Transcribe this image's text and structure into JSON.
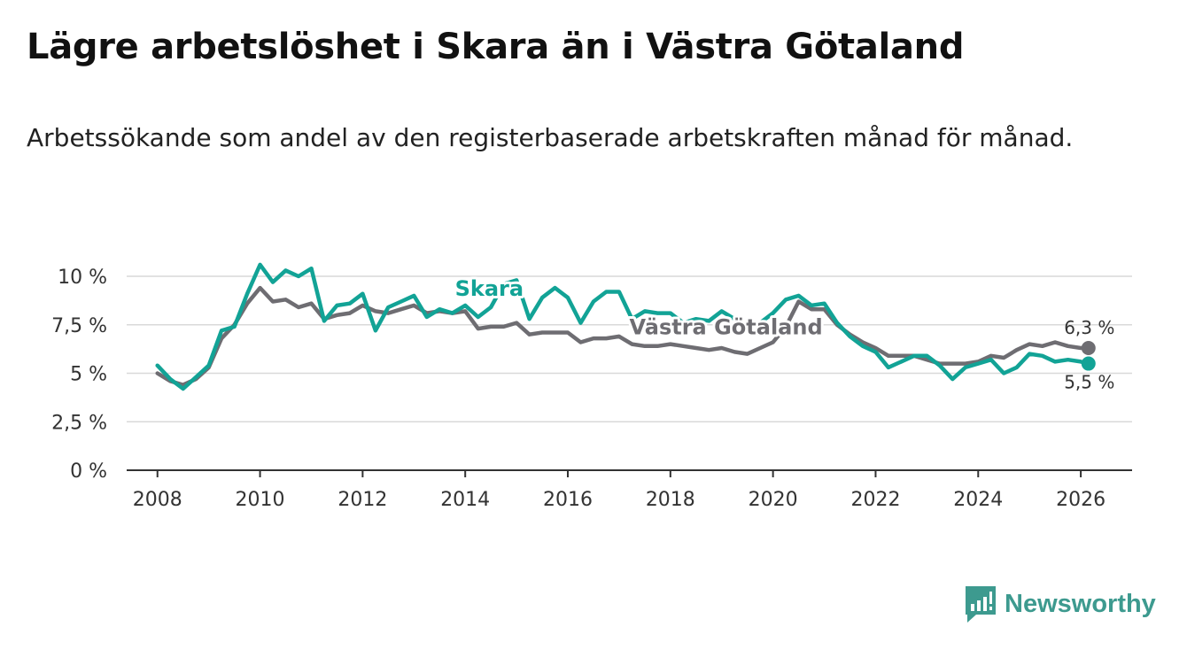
{
  "title": "Lägre arbetslöshet i Skara än i Västra Götaland",
  "subtitle": "Arbetssökande som andel av den registerbaserade arbetskraften månad för månad.",
  "brand": {
    "name": "Newsworthy",
    "color": "#3d9a8f",
    "icon": "newsworthy-logo-icon"
  },
  "chart_data": {
    "type": "line",
    "title": "Lägre arbetslöshet i Skara än i Västra Götaland",
    "xlabel": "",
    "ylabel": "",
    "xlim": [
      2007.4,
      2027.0
    ],
    "ylim": [
      0,
      10
    ],
    "grid": true,
    "x_ticks": [
      2008,
      2010,
      2012,
      2014,
      2016,
      2018,
      2020,
      2022,
      2024,
      2026
    ],
    "x_tick_labels": [
      "2008",
      "2010",
      "2012",
      "2014",
      "2016",
      "2018",
      "2020",
      "2022",
      "2024",
      "2026"
    ],
    "y_ticks": [
      0,
      2.5,
      5,
      7.5,
      10
    ],
    "y_tick_labels": [
      "0 %",
      "2,5 %",
      "5 %",
      "7,5 %",
      "10 %"
    ],
    "series": [
      {
        "name": "Västra Götaland",
        "color": "#6e6d72",
        "label": "Västra Götaland",
        "label_at": [
          2017.2,
          7.0
        ],
        "end_label": "6,3 %",
        "x": [
          2008.0,
          2008.25,
          2008.5,
          2008.75,
          2009.0,
          2009.25,
          2009.5,
          2009.75,
          2010.0,
          2010.25,
          2010.5,
          2010.75,
          2011.0,
          2011.25,
          2011.5,
          2011.75,
          2012.0,
          2012.25,
          2012.5,
          2012.75,
          2013.0,
          2013.25,
          2013.5,
          2013.75,
          2014.0,
          2014.25,
          2014.5,
          2014.75,
          2015.0,
          2015.25,
          2015.5,
          2015.75,
          2016.0,
          2016.25,
          2016.5,
          2016.75,
          2017.0,
          2017.25,
          2017.5,
          2017.75,
          2018.0,
          2018.25,
          2018.5,
          2018.75,
          2019.0,
          2019.25,
          2019.5,
          2019.75,
          2020.0,
          2020.25,
          2020.5,
          2020.75,
          2021.0,
          2021.25,
          2021.5,
          2021.75,
          2022.0,
          2022.25,
          2022.5,
          2022.75,
          2023.0,
          2023.25,
          2023.5,
          2023.75,
          2024.0,
          2024.25,
          2024.5,
          2024.75,
          2025.0,
          2025.25,
          2025.5,
          2025.75,
          2026.0,
          2026.15
        ],
        "values": [
          5.0,
          4.6,
          4.4,
          4.7,
          5.3,
          6.8,
          7.5,
          8.6,
          9.4,
          8.7,
          8.8,
          8.4,
          8.6,
          7.8,
          8.0,
          8.1,
          8.5,
          8.2,
          8.1,
          8.3,
          8.5,
          8.1,
          8.2,
          8.1,
          8.2,
          7.3,
          7.4,
          7.4,
          7.6,
          7.0,
          7.1,
          7.1,
          7.1,
          6.6,
          6.8,
          6.8,
          6.9,
          6.5,
          6.4,
          6.4,
          6.5,
          6.4,
          6.3,
          6.2,
          6.3,
          6.1,
          6.0,
          6.3,
          6.6,
          7.4,
          8.7,
          8.3,
          8.3,
          7.5,
          7.0,
          6.6,
          6.3,
          5.9,
          5.9,
          5.9,
          5.7,
          5.5,
          5.5,
          5.5,
          5.6,
          5.9,
          5.8,
          6.2,
          6.5,
          6.4,
          6.6,
          6.4,
          6.3,
          6.3
        ]
      },
      {
        "name": "Skara",
        "color": "#12a396",
        "label": "Skara",
        "label_at": [
          2013.8,
          9.0
        ],
        "end_label": "5,5 %",
        "x": [
          2008.0,
          2008.25,
          2008.5,
          2008.75,
          2009.0,
          2009.25,
          2009.5,
          2009.75,
          2010.0,
          2010.25,
          2010.5,
          2010.75,
          2011.0,
          2011.25,
          2011.5,
          2011.75,
          2012.0,
          2012.25,
          2012.5,
          2012.75,
          2013.0,
          2013.25,
          2013.5,
          2013.75,
          2014.0,
          2014.25,
          2014.5,
          2014.75,
          2015.0,
          2015.25,
          2015.5,
          2015.75,
          2016.0,
          2016.25,
          2016.5,
          2016.75,
          2017.0,
          2017.25,
          2017.5,
          2017.75,
          2018.0,
          2018.25,
          2018.5,
          2018.75,
          2019.0,
          2019.25,
          2019.5,
          2019.75,
          2020.0,
          2020.25,
          2020.5,
          2020.75,
          2021.0,
          2021.25,
          2021.5,
          2021.75,
          2022.0,
          2022.25,
          2022.5,
          2022.75,
          2023.0,
          2023.25,
          2023.5,
          2023.75,
          2024.0,
          2024.25,
          2024.5,
          2024.75,
          2025.0,
          2025.25,
          2025.5,
          2025.75,
          2026.0,
          2026.15
        ],
        "values": [
          5.4,
          4.7,
          4.2,
          4.8,
          5.4,
          7.2,
          7.4,
          9.1,
          10.6,
          9.7,
          10.3,
          10.0,
          10.4,
          7.7,
          8.5,
          8.6,
          9.1,
          7.2,
          8.4,
          8.7,
          9.0,
          7.9,
          8.3,
          8.1,
          8.5,
          7.9,
          8.4,
          9.6,
          9.8,
          7.8,
          8.9,
          9.4,
          8.9,
          7.6,
          8.7,
          9.2,
          9.2,
          7.8,
          8.2,
          8.1,
          8.1,
          7.6,
          7.8,
          7.7,
          8.2,
          7.8,
          7.3,
          7.6,
          8.1,
          8.8,
          9.0,
          8.5,
          8.6,
          7.6,
          6.9,
          6.4,
          6.1,
          5.3,
          5.6,
          5.9,
          5.9,
          5.4,
          4.7,
          5.3,
          5.5,
          5.7,
          5.0,
          5.3,
          6.0,
          5.9,
          5.6,
          5.7,
          5.6,
          5.5
        ]
      }
    ]
  }
}
